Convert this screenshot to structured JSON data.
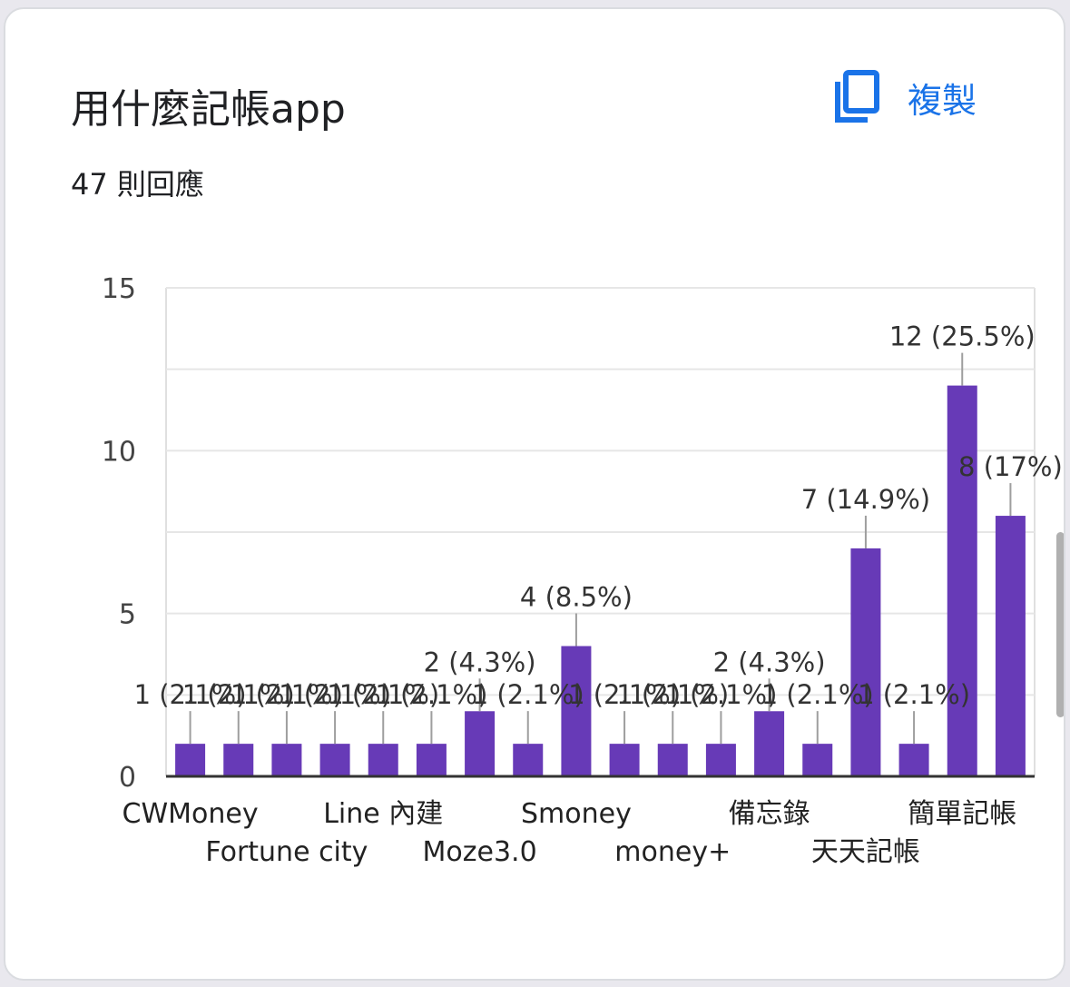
{
  "header": {
    "title": "用什麼記帳app",
    "response_count": "47 則回應",
    "copy_label": "複製"
  },
  "colors": {
    "bar": "#673ab7",
    "accent": "#1a73e8"
  },
  "icons": {
    "copy": "copy-icon"
  },
  "chart_data": {
    "type": "bar",
    "categories": [
      "CWMoney",
      "",
      "Fortune city",
      "",
      "Line 內建",
      "",
      "Moze3.0",
      "",
      "Smoney",
      "",
      "money+",
      "",
      "備忘錄",
      "",
      "天天記帳",
      "",
      "簡單記帳",
      ""
    ],
    "values": [
      1,
      1,
      1,
      1,
      1,
      1,
      2,
      1,
      4,
      1,
      1,
      1,
      2,
      1,
      7,
      1,
      12,
      8
    ],
    "data_labels": [
      "1 (2.1%)",
      "1 (2.1%)",
      "1 (2.1%)",
      "1 (2.1%)",
      "1 (2.1%)",
      "1 (2.1%)",
      "2 (4.3%)",
      "1 (2.1%)",
      "4 (8.5%)",
      "1 (2.1%)",
      "1 (2.1%)",
      "1 (2.1%)",
      "2 (4.3%)",
      "1 (2.1%)",
      "7 (14.9%)",
      "1 (2.1%)",
      "12 (25.5%)",
      "8 (17%)"
    ],
    "ylim": [
      0,
      15
    ],
    "yticks": [
      0,
      5,
      10,
      15
    ],
    "grid": true,
    "title": "",
    "xlabel": "",
    "ylabel": ""
  }
}
